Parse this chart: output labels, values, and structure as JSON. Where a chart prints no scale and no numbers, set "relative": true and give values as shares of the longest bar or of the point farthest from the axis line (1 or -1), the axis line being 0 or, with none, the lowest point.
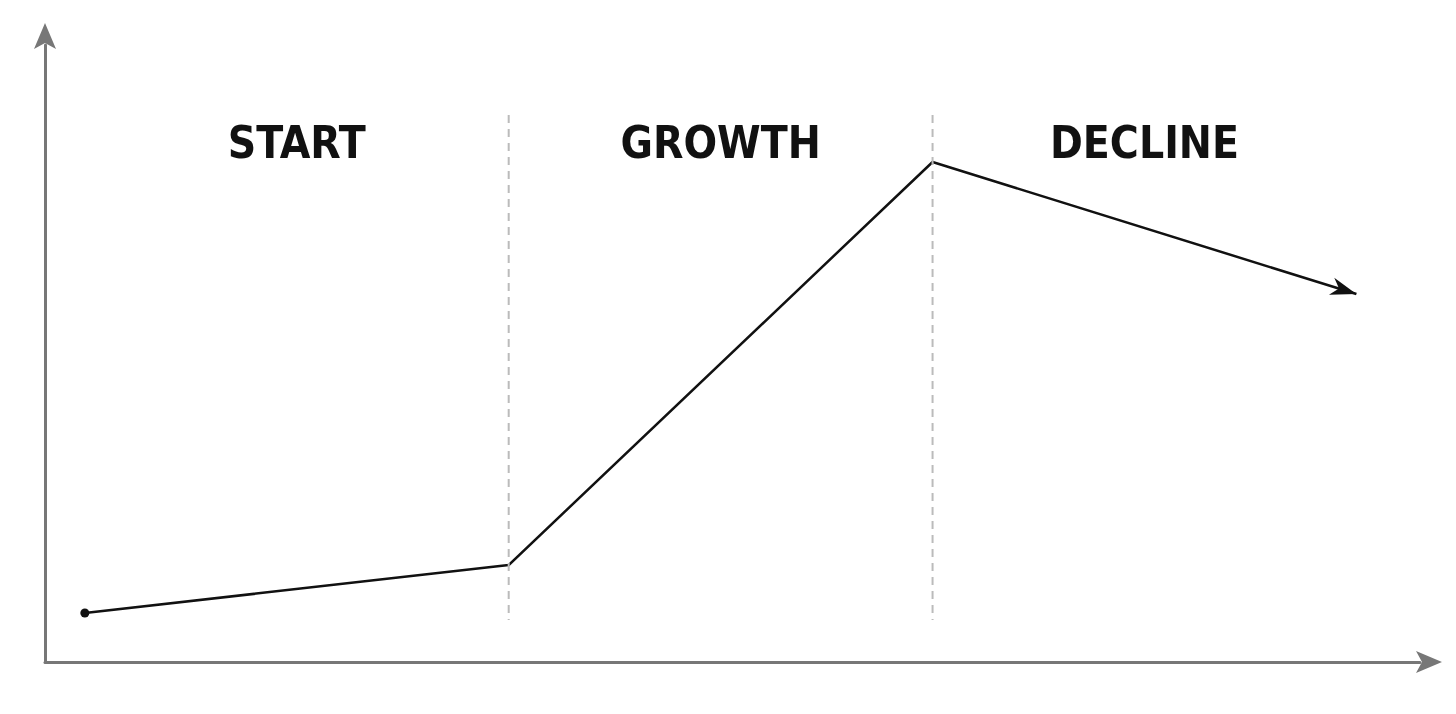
{
  "chart_data": {
    "type": "line",
    "relative": true,
    "categories": [
      null,
      null,
      null,
      null
    ],
    "values": [
      0.098,
      0.194,
      1,
      0.736
    ],
    "color": "#111111",
    "annotations": [
      "START",
      "GROWTH",
      "DECLINE"
    ]
  }
}
